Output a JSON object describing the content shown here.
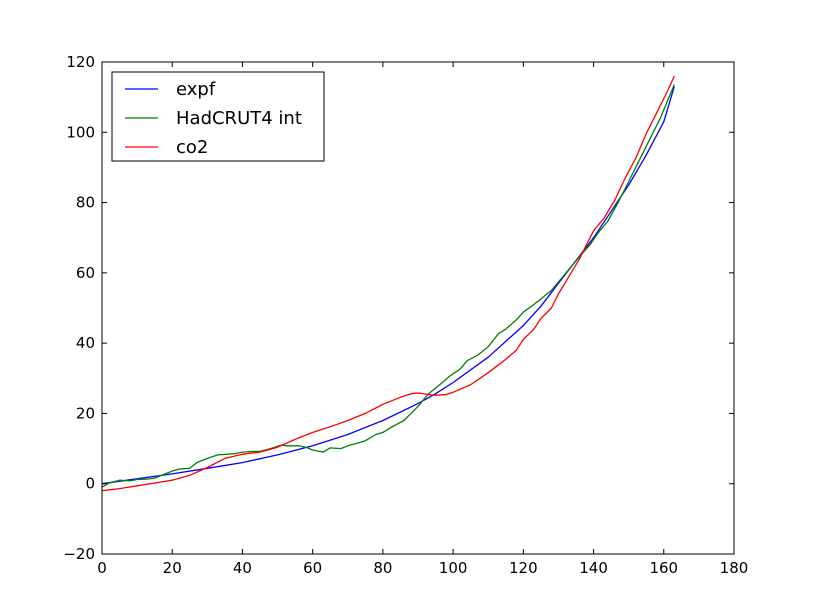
{
  "chart_data": {
    "type": "line",
    "title": "",
    "xlabel": "",
    "ylabel": "",
    "xlim": [
      0,
      180
    ],
    "ylim": [
      -20,
      120
    ],
    "xticks": [
      0,
      20,
      40,
      60,
      80,
      100,
      120,
      140,
      160,
      180
    ],
    "yticks": [
      -20,
      0,
      20,
      40,
      60,
      80,
      100,
      120
    ],
    "ytick_labels": [
      "−20",
      "0",
      "20",
      "40",
      "60",
      "80",
      "100",
      "120"
    ],
    "grid": false,
    "legend": "top-left",
    "series": [
      {
        "name": "expf",
        "color": "#0000ff",
        "points": [
          [
            0,
            0
          ],
          [
            10,
            1.4
          ],
          [
            20,
            2.8
          ],
          [
            30,
            4.4
          ],
          [
            40,
            6.0
          ],
          [
            50,
            8.2
          ],
          [
            60,
            10.8
          ],
          [
            70,
            14.0
          ],
          [
            80,
            18.0
          ],
          [
            90,
            22.8
          ],
          [
            95,
            25.6
          ],
          [
            100,
            28.8
          ],
          [
            110,
            36.0
          ],
          [
            120,
            45.0
          ],
          [
            125,
            50.5
          ],
          [
            130,
            57.0
          ],
          [
            140,
            70.0
          ],
          [
            150,
            85.0
          ],
          [
            155,
            93.5
          ],
          [
            160,
            103.0
          ],
          [
            163,
            113.0
          ]
        ]
      },
      {
        "name": "HadCRUT4 int",
        "color": "#008000",
        "points": [
          [
            0,
            -1
          ],
          [
            2,
            0.2
          ],
          [
            5,
            1.0
          ],
          [
            8,
            0.8
          ],
          [
            10,
            1.2
          ],
          [
            13,
            1.3
          ],
          [
            15,
            1.6
          ],
          [
            18,
            2.8
          ],
          [
            20,
            3.6
          ],
          [
            22,
            4.2
          ],
          [
            25,
            4.4
          ],
          [
            27,
            6.0
          ],
          [
            30,
            7.2
          ],
          [
            33,
            8.2
          ],
          [
            36,
            8.4
          ],
          [
            38,
            8.6
          ],
          [
            40,
            9.0
          ],
          [
            43,
            9.2
          ],
          [
            45,
            9.2
          ],
          [
            48,
            10.0
          ],
          [
            51,
            11.0
          ],
          [
            53,
            10.8
          ],
          [
            56,
            10.8
          ],
          [
            58,
            10.4
          ],
          [
            60,
            9.6
          ],
          [
            63,
            9.0
          ],
          [
            65,
            10.2
          ],
          [
            68,
            10.0
          ],
          [
            70,
            10.8
          ],
          [
            73,
            11.6
          ],
          [
            75,
            12.2
          ],
          [
            78,
            14.0
          ],
          [
            80,
            14.6
          ],
          [
            83,
            16.4
          ],
          [
            86,
            18.0
          ],
          [
            88,
            20.0
          ],
          [
            90,
            22.0
          ],
          [
            93,
            25.6
          ],
          [
            96,
            28.0
          ],
          [
            99,
            30.6
          ],
          [
            102,
            32.6
          ],
          [
            104,
            35.0
          ],
          [
            107,
            36.6
          ],
          [
            110,
            39.0
          ],
          [
            113,
            42.8
          ],
          [
            115,
            44.0
          ],
          [
            118,
            46.6
          ],
          [
            120,
            48.8
          ],
          [
            123,
            51.0
          ],
          [
            125,
            52.6
          ],
          [
            128,
            55.0
          ],
          [
            130,
            57.4
          ],
          [
            133,
            61.0
          ],
          [
            136,
            64.6
          ],
          [
            139,
            68.0
          ],
          [
            141,
            71.0
          ],
          [
            144,
            74.6
          ],
          [
            147,
            80.0
          ],
          [
            150,
            86.0
          ],
          [
            153,
            92.0
          ],
          [
            156,
            98.0
          ],
          [
            159,
            104.0
          ],
          [
            163,
            113.6
          ]
        ]
      },
      {
        "name": "co2",
        "color": "#ff0000",
        "points": [
          [
            0,
            -2
          ],
          [
            5,
            -1.4
          ],
          [
            10,
            -0.6
          ],
          [
            15,
            0.2
          ],
          [
            20,
            1.0
          ],
          [
            25,
            2.4
          ],
          [
            30,
            4.6
          ],
          [
            35,
            7.2
          ],
          [
            40,
            8.4
          ],
          [
            45,
            9.0
          ],
          [
            50,
            10.4
          ],
          [
            55,
            12.6
          ],
          [
            60,
            14.6
          ],
          [
            65,
            16.2
          ],
          [
            70,
            18.0
          ],
          [
            75,
            20.0
          ],
          [
            80,
            22.6
          ],
          [
            85,
            24.6
          ],
          [
            88,
            25.6
          ],
          [
            90,
            25.8
          ],
          [
            93,
            25.4
          ],
          [
            95,
            25.2
          ],
          [
            98,
            25.4
          ],
          [
            100,
            26.0
          ],
          [
            105,
            28.2
          ],
          [
            110,
            31.6
          ],
          [
            115,
            35.4
          ],
          [
            118,
            38.0
          ],
          [
            120,
            41.0
          ],
          [
            123,
            44.0
          ],
          [
            125,
            47.0
          ],
          [
            128,
            50.0
          ],
          [
            130,
            54.0
          ],
          [
            133,
            59.0
          ],
          [
            136,
            64.0
          ],
          [
            138,
            68.0
          ],
          [
            140,
            72.0
          ],
          [
            143,
            75.6
          ],
          [
            146,
            80.6
          ],
          [
            149,
            87.0
          ],
          [
            152,
            92.6
          ],
          [
            155,
            99.6
          ],
          [
            158,
            105.6
          ],
          [
            161,
            111.6
          ],
          [
            163,
            116.0
          ]
        ]
      }
    ]
  }
}
